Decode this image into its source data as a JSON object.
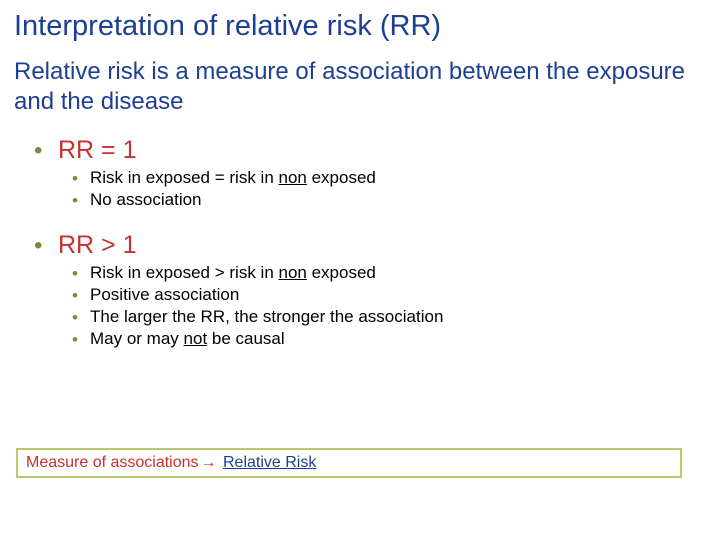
{
  "title": "Interpretation of relative risk (RR)",
  "subtitle": "Relative risk is a measure of association between the exposure and the disease",
  "sections": [
    {
      "heading": "RR = 1",
      "items": [
        {
          "pre": "Risk in exposed = risk in ",
          "u": "non",
          "post": " exposed"
        },
        {
          "pre": "No association",
          "u": "",
          "post": ""
        }
      ]
    },
    {
      "heading": "RR > 1",
      "items": [
        {
          "pre": "Risk in exposed > risk in ",
          "u": "non",
          "post": " exposed"
        },
        {
          "pre": "Positive association",
          "u": "",
          "post": ""
        },
        {
          "pre": "The larger the RR, the stronger the association",
          "u": "",
          "post": ""
        },
        {
          "pre": "May or may ",
          "u": "not",
          "post": " be causal"
        }
      ]
    }
  ],
  "breadcrumb": {
    "left": "Measure of associations",
    "arrow": "→",
    "right": "Relative Risk"
  },
  "colors": {
    "title": "#1c3f94",
    "heading": "#c73030",
    "bullet": "#7a8a3a",
    "text": "#000000",
    "box_border": "#b9c96b",
    "breadcrumb_right": "#1c3f94",
    "background": "#ffffff"
  }
}
